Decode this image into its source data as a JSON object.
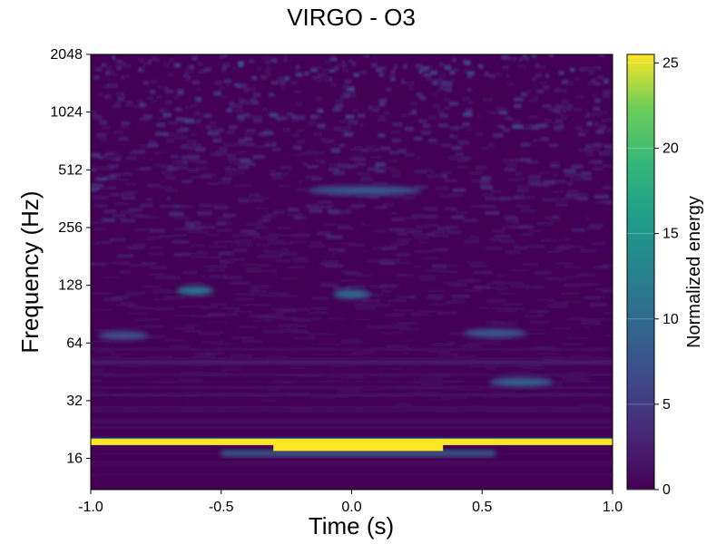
{
  "chart_data": {
    "type": "heatmap",
    "title": "VIRGO - O3",
    "xlabel": "Time (s)",
    "ylabel": "Frequency (Hz)",
    "xlim": [
      -1.0,
      1.0
    ],
    "ylim": [
      11,
      2048
    ],
    "yscale": "log2",
    "x_ticks": [
      -1.0,
      -0.5,
      0.0,
      0.5,
      1.0
    ],
    "x_tick_labels": [
      "-1.0",
      "-0.5",
      "0.0",
      "0.5",
      "1.0"
    ],
    "y_ticks": [
      16,
      32,
      64,
      128,
      256,
      512,
      1024,
      2048
    ],
    "y_tick_labels": [
      "16",
      "32",
      "64",
      "128",
      "256",
      "512",
      "1024",
      "2048"
    ],
    "colormap": "viridis",
    "colorbar": {
      "label": "Normalized energy",
      "range": [
        0,
        25.5
      ],
      "ticks": [
        0,
        5,
        10,
        15,
        20,
        25
      ],
      "tick_labels": [
        "0",
        "5",
        "10",
        "15",
        "20",
        "25"
      ]
    },
    "features": [
      {
        "t": [
          -1.0,
          1.0
        ],
        "f": 19.5,
        "energy": 25.5
      },
      {
        "t": [
          -0.3,
          0.35
        ],
        "f": 18.0,
        "energy": 25.5
      },
      {
        "t": [
          -0.5,
          0.55
        ],
        "f": 17.0,
        "energy": 10.0
      },
      {
        "t": [
          -0.95,
          -0.8
        ],
        "f": 70,
        "energy": 7
      },
      {
        "t": [
          -0.65,
          -0.55
        ],
        "f": 120,
        "energy": 11
      },
      {
        "t": [
          -0.05,
          0.05
        ],
        "f": 115,
        "energy": 10
      },
      {
        "t": [
          0.45,
          0.65
        ],
        "f": 72,
        "energy": 8
      },
      {
        "t": [
          0.55,
          0.75
        ],
        "f": 40,
        "energy": 9
      },
      {
        "t": [
          -0.15,
          0.25
        ],
        "f": 400,
        "energy": 8
      }
    ]
  },
  "colors": {
    "viridis_low": "#440154",
    "viridis_mid": "#21918c",
    "viridis_high": "#fde725"
  }
}
